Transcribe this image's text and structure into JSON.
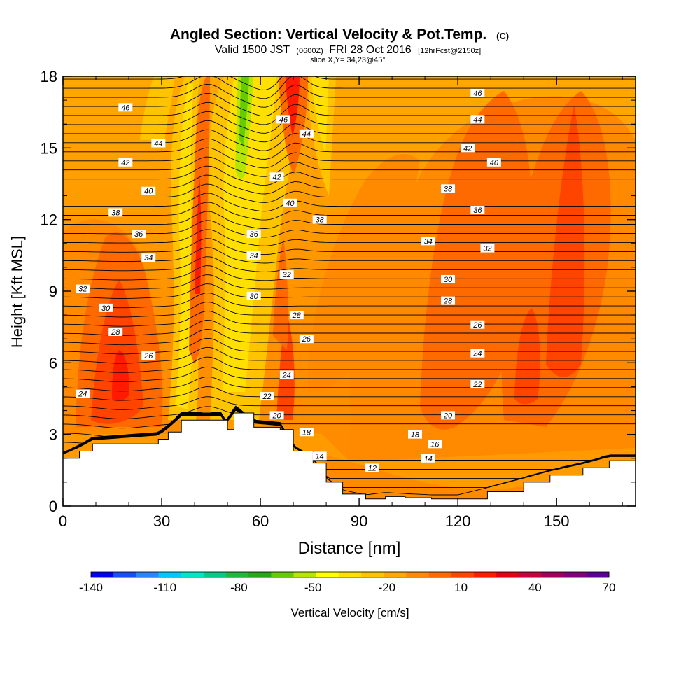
{
  "chart_data": {
    "type": "heatmap",
    "title": "Angled Section: Vertical Velocity & Pot.Temp.",
    "title_unit": "(C)",
    "subtitle_valid": "Valid 1500 JST",
    "subtitle_utc": "(0600Z)",
    "subtitle_date": "FRI 28 Oct 2016",
    "subtitle_run": "[12hrFcst@2150z]",
    "subtitle_slice": "slice X,Y= 34,23@45°",
    "xlabel": "Distance [nm]",
    "ylabel": "Height [Kft MSL]",
    "xlim": [
      0,
      174
    ],
    "ylim": [
      0,
      18
    ],
    "x_ticks": [
      "0",
      "30",
      "60",
      "90",
      "120",
      "150"
    ],
    "y_ticks": [
      "0",
      "3",
      "6",
      "9",
      "12",
      "15",
      "18"
    ],
    "grid": false,
    "colorbar": {
      "label": "Vertical Velocity [cm/s]",
      "tick_labels": [
        "-140",
        "-110",
        "-80",
        "-50",
        "-20",
        "10",
        "40",
        "70"
      ],
      "colors": [
        "#0000ee",
        "#1a4dff",
        "#2a86ff",
        "#00c8ff",
        "#00e6c8",
        "#00cc88",
        "#1eb83c",
        "#24a818",
        "#66cc00",
        "#b4e600",
        "#ffff00",
        "#ffe000",
        "#ffc400",
        "#ffa800",
        "#ff8a00",
        "#ff6a00",
        "#ff4400",
        "#ff1a00",
        "#e60014",
        "#c8003c",
        "#a0005a",
        "#820078",
        "#5a0096"
      ]
    },
    "terrain": [
      [
        0,
        2.0
      ],
      [
        5,
        2.3
      ],
      [
        9,
        2.6
      ],
      [
        29,
        2.8
      ],
      [
        32,
        3.1
      ],
      [
        36,
        3.6
      ],
      [
        48,
        3.6
      ],
      [
        50,
        3.2
      ],
      [
        52,
        3.9
      ],
      [
        58,
        3.3
      ],
      [
        66,
        3.2
      ],
      [
        70,
        2.3
      ],
      [
        76,
        1.8
      ],
      [
        80,
        1.0
      ],
      [
        85,
        0.5
      ],
      [
        92,
        0.3
      ],
      [
        98,
        0.4
      ],
      [
        104,
        0.35
      ],
      [
        112,
        0.3
      ],
      [
        120,
        0.3
      ],
      [
        129,
        0.6
      ],
      [
        140,
        1.0
      ],
      [
        148,
        1.3
      ],
      [
        158,
        1.6
      ],
      [
        166,
        1.9
      ],
      [
        174,
        1.9
      ]
    ],
    "isotherm_labels": [
      {
        "x": 19,
        "z": 16.7,
        "text": "46"
      },
      {
        "x": 29,
        "z": 15.2,
        "text": "44"
      },
      {
        "x": 19,
        "z": 14.4,
        "text": "42"
      },
      {
        "x": 26,
        "z": 13.2,
        "text": "40"
      },
      {
        "x": 16,
        "z": 12.3,
        "text": "38"
      },
      {
        "x": 23,
        "z": 11.4,
        "text": "36"
      },
      {
        "x": 26,
        "z": 10.4,
        "text": "34"
      },
      {
        "x": 6,
        "z": 9.1,
        "text": "32"
      },
      {
        "x": 13,
        "z": 8.3,
        "text": "30"
      },
      {
        "x": 16,
        "z": 7.3,
        "text": "28"
      },
      {
        "x": 26,
        "z": 6.3,
        "text": "26"
      },
      {
        "x": 6,
        "z": 4.7,
        "text": "24"
      },
      {
        "x": 67,
        "z": 16.2,
        "text": "46"
      },
      {
        "x": 74,
        "z": 15.6,
        "text": "44"
      },
      {
        "x": 65,
        "z": 13.8,
        "text": "42"
      },
      {
        "x": 69,
        "z": 12.7,
        "text": "40"
      },
      {
        "x": 78,
        "z": 12.0,
        "text": "38"
      },
      {
        "x": 58,
        "z": 11.4,
        "text": "36"
      },
      {
        "x": 58,
        "z": 10.5,
        "text": "34"
      },
      {
        "x": 68,
        "z": 9.7,
        "text": "32"
      },
      {
        "x": 58,
        "z": 8.8,
        "text": "30"
      },
      {
        "x": 71,
        "z": 8.0,
        "text": "28"
      },
      {
        "x": 74,
        "z": 7.0,
        "text": "26"
      },
      {
        "x": 68,
        "z": 5.5,
        "text": "24"
      },
      {
        "x": 62,
        "z": 4.6,
        "text": "22"
      },
      {
        "x": 65,
        "z": 3.8,
        "text": "20"
      },
      {
        "x": 74,
        "z": 3.1,
        "text": "18"
      },
      {
        "x": 78,
        "z": 2.1,
        "text": "14"
      },
      {
        "x": 94,
        "z": 1.6,
        "text": "12"
      },
      {
        "x": 126,
        "z": 17.3,
        "text": "46"
      },
      {
        "x": 126,
        "z": 16.2,
        "text": "44"
      },
      {
        "x": 123,
        "z": 15.0,
        "text": "42"
      },
      {
        "x": 131,
        "z": 14.4,
        "text": "40"
      },
      {
        "x": 117,
        "z": 13.3,
        "text": "38"
      },
      {
        "x": 126,
        "z": 12.4,
        "text": "36"
      },
      {
        "x": 111,
        "z": 11.1,
        "text": "34"
      },
      {
        "x": 129,
        "z": 10.8,
        "text": "32"
      },
      {
        "x": 117,
        "z": 9.5,
        "text": "30"
      },
      {
        "x": 117,
        "z": 8.6,
        "text": "28"
      },
      {
        "x": 126,
        "z": 7.6,
        "text": "26"
      },
      {
        "x": 126,
        "z": 6.4,
        "text": "24"
      },
      {
        "x": 126,
        "z": 5.1,
        "text": "22"
      },
      {
        "x": 117,
        "z": 3.8,
        "text": "20"
      },
      {
        "x": 107,
        "z": 3.0,
        "text": "18"
      },
      {
        "x": 113,
        "z": 2.6,
        "text": "16"
      },
      {
        "x": 111,
        "z": 2.0,
        "text": "14"
      }
    ]
  }
}
